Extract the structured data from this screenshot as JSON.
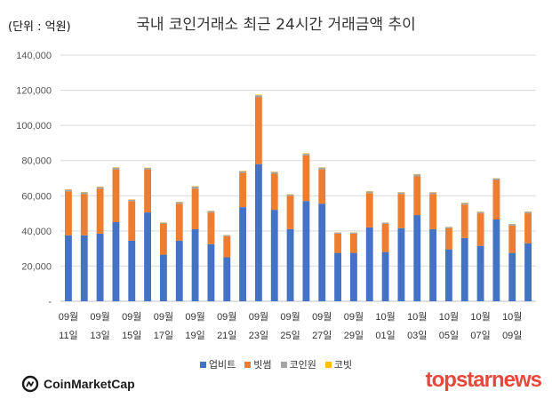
{
  "unit_label": "(단위 : 억원)",
  "chart_data": {
    "type": "bar",
    "stacked": true,
    "title": "국내 코인거래소 최근 24시간 거래금액 추이",
    "xlabel": "",
    "ylabel": "",
    "ylim": [
      0,
      140000
    ],
    "yticks": [
      0,
      20000,
      40000,
      60000,
      80000,
      100000,
      120000,
      140000
    ],
    "ytick_labels": [
      "-",
      "20,000",
      "40,000",
      "60,000",
      "80,000",
      "100,000",
      "120,000",
      "140,000"
    ],
    "grid": true,
    "legend_position": "bottom",
    "xtick_labels": [
      {
        "month": "09월",
        "day": "11일"
      },
      {
        "month": "09월",
        "day": "13일"
      },
      {
        "month": "09월",
        "day": "15일"
      },
      {
        "month": "09월",
        "day": "17일"
      },
      {
        "month": "09월",
        "day": "19일"
      },
      {
        "month": "09월",
        "day": "21일"
      },
      {
        "month": "09월",
        "day": "23일"
      },
      {
        "month": "09월",
        "day": "25일"
      },
      {
        "month": "09월",
        "day": "27일"
      },
      {
        "month": "09월",
        "day": "29일"
      },
      {
        "month": "10월",
        "day": "01일"
      },
      {
        "month": "10월",
        "day": "03일"
      },
      {
        "month": "10월",
        "day": "05일"
      },
      {
        "month": "10월",
        "day": "07일"
      },
      {
        "month": "10월",
        "day": "09일"
      }
    ],
    "categories": [
      "09/11",
      "09/12",
      "09/13",
      "09/14",
      "09/15",
      "09/16",
      "09/17",
      "09/18",
      "09/19",
      "09/20",
      "09/21",
      "09/22",
      "09/23",
      "09/24",
      "09/25",
      "09/26",
      "09/27",
      "09/28",
      "09/29",
      "09/30",
      "10/01",
      "10/02",
      "10/03",
      "10/04",
      "10/05",
      "10/06",
      "10/07",
      "10/08",
      "10/09",
      "10/10"
    ],
    "series": [
      {
        "name": "업비트",
        "color": "#4472c4",
        "values": [
          37500,
          37500,
          38500,
          45000,
          34500,
          50500,
          26500,
          34500,
          41000,
          32500,
          25000,
          53500,
          78000,
          52000,
          41000,
          57000,
          55500,
          27500,
          27500,
          42000,
          28000,
          41500,
          49000,
          41000,
          29500,
          36000,
          31500,
          46500,
          27500,
          33000
        ]
      },
      {
        "name": "빗썸",
        "color": "#ed7d31",
        "values": [
          25000,
          23500,
          25500,
          30000,
          22500,
          24500,
          17500,
          21000,
          23000,
          18000,
          12000,
          19500,
          38000,
          20500,
          19000,
          26000,
          19500,
          11000,
          11000,
          19500,
          16000,
          19500,
          22000,
          20000,
          12000,
          19000,
          18500,
          22500,
          15500,
          17000
        ]
      },
      {
        "name": "코인원",
        "color": "#a5a5a5",
        "values": [
          1000,
          1000,
          1000,
          1000,
          800,
          800,
          700,
          900,
          1200,
          800,
          600,
          1000,
          1200,
          1000,
          800,
          1000,
          1000,
          600,
          600,
          1000,
          700,
          900,
          1200,
          900,
          700,
          900,
          800,
          900,
          900,
          900
        ]
      },
      {
        "name": "코빗",
        "color": "#ffc000",
        "values": [
          200,
          200,
          200,
          200,
          150,
          150,
          150,
          150,
          200,
          150,
          100,
          200,
          300,
          200,
          150,
          200,
          200,
          100,
          100,
          200,
          100,
          150,
          200,
          150,
          100,
          150,
          150,
          150,
          150,
          150
        ]
      }
    ]
  },
  "brands": {
    "left": "CoinMarketCap",
    "right": "topstarnews"
  }
}
